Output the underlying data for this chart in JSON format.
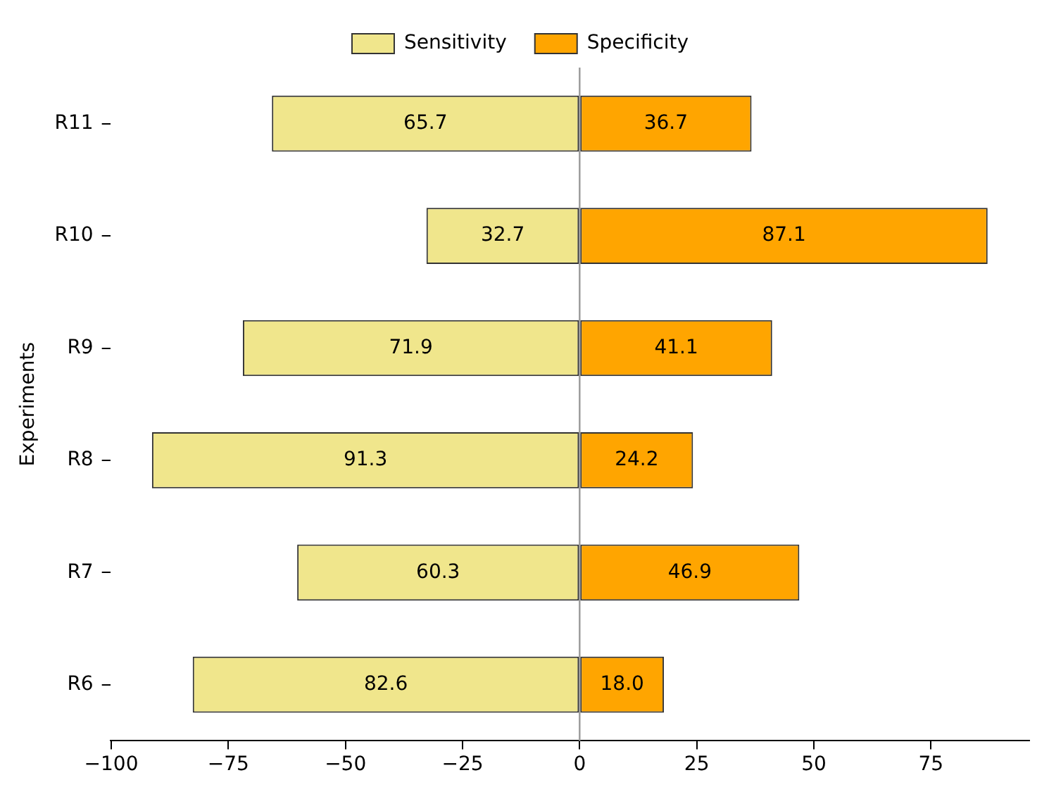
{
  "chart_data": {
    "type": "bar",
    "orientation": "horizontal",
    "ylabel": "Experiments",
    "categories": [
      "R11",
      "R10",
      "R9",
      "R8",
      "R7",
      "R6"
    ],
    "series": [
      {
        "name": "Sensitivity",
        "color": "#f0e68c",
        "values": [
          65.7,
          32.7,
          71.9,
          91.3,
          60.3,
          82.6
        ],
        "base": [
          -65.7,
          -32.7,
          -71.9,
          -91.3,
          -60.3,
          -82.6
        ],
        "value_labels": [
          "65.7",
          "32.7",
          "71.9",
          "91.3",
          "60.3",
          "82.6"
        ]
      },
      {
        "name": "Specificity",
        "color": "#ffa500",
        "values": [
          36.7,
          87.1,
          41.1,
          24.2,
          46.9,
          18.0
        ],
        "value_labels": [
          "36.7",
          "87.1",
          "41.1",
          "24.2",
          "46.9",
          "18.0"
        ]
      }
    ],
    "xlim": [
      -100.2,
      96
    ],
    "xticks": [
      {
        "value": -100,
        "label": "−100"
      },
      {
        "value": -75,
        "label": "−75"
      },
      {
        "value": -50,
        "label": "−50"
      },
      {
        "value": -25,
        "label": "−25"
      },
      0,
      25,
      50,
      75
    ],
    "ref_lines": [
      {
        "axis": "x",
        "value": 0,
        "color": "#999999"
      }
    ],
    "grid": false,
    "legend": "top"
  }
}
